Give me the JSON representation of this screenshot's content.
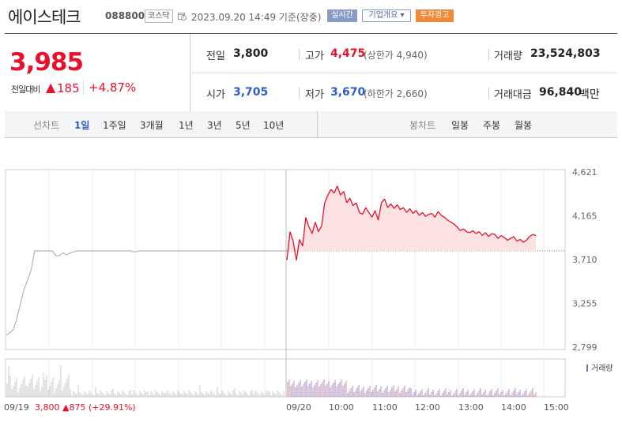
{
  "header": {
    "name": "에이스테크",
    "code": "088800",
    "market": "코스닥",
    "datetime": "2023.09.20 14:49 기준(장중)",
    "realtime_label": "실시간",
    "company_label": "기업개요 ▾",
    "warning_label": "투자경고"
  },
  "price": {
    "current": "3,985",
    "change_label": "전일대비",
    "change_arrow": "▲",
    "change_value": "185",
    "change_pct": "+4.87%"
  },
  "stats": {
    "prev_label": "전일",
    "prev_value": "3,800",
    "high_label": "고가",
    "high_value": "4,475",
    "upper_label": "(상한가 4,940)",
    "volume_label": "거래량",
    "volume_value": "23,524,803",
    "open_label": "시가",
    "open_value": "3,705",
    "low_label": "저가",
    "low_value": "3,670",
    "lower_label": "(하한가 2,660)",
    "amount_label": "거래대금",
    "amount_value": "96,840",
    "amount_unit": "백만"
  },
  "period": {
    "line_label": "선차트",
    "line_items": [
      "1일",
      "1주일",
      "3개월",
      "1년",
      "3년",
      "5년",
      "10년"
    ],
    "active": "1일",
    "candle_label": "봉차트",
    "candle_items": [
      "일봉",
      "주봉",
      "월봉"
    ]
  },
  "chart_data": {
    "type": "line",
    "y_ticks": [
      "4,621",
      "4,165",
      "3,710",
      "3,255",
      "2,799"
    ],
    "ylim": [
      2799,
      4621
    ],
    "reference_price": 3800,
    "x_ticks": [
      "09/19",
      "09/20",
      "10:00",
      "11:00",
      "12:00",
      "13:00",
      "14:00",
      "15:00"
    ],
    "prev_day_note": "3,800 ▲875 (+29.91%)",
    "volume_legend": "거래량",
    "series": [
      {
        "x": [
          0,
          0.5,
          1,
          1.5,
          2,
          2.5,
          3,
          3.5,
          4,
          4.5,
          5,
          5.5,
          6,
          6.5,
          7,
          7.5,
          8,
          8.5,
          9,
          9.5,
          10,
          10.5,
          11,
          11.5,
          12,
          12.5,
          13,
          13.5,
          14,
          14.5,
          15,
          15.5,
          16,
          16.5,
          17,
          17.5,
          18,
          18.5,
          19,
          19.5,
          20,
          20.5,
          21,
          21.5,
          22,
          22.5,
          23,
          23.5,
          24,
          24.5,
          25,
          25.5,
          26,
          26.5,
          27,
          27.5,
          28,
          28.5,
          29,
          29.5,
          30,
          30.5,
          31,
          31.5,
          32,
          32.5,
          33,
          33.5,
          34,
          34.5,
          35,
          35.5,
          36,
          36.5,
          37,
          37.5,
          38,
          38.5,
          39,
          39.5
        ],
        "y": [
          2925,
          2950,
          2980,
          3100,
          3250,
          3400,
          3500,
          3600,
          3800,
          3800,
          3800,
          3800,
          3800,
          3800,
          3750,
          3750,
          3780,
          3760,
          3780,
          3790,
          3800,
          3800,
          3800,
          3800,
          3800,
          3800,
          3800,
          3800,
          3800,
          3800,
          3800,
          3800,
          3800,
          3800,
          3800,
          3800,
          3790,
          3795,
          3800,
          3800,
          3800,
          3800,
          3800,
          3800,
          3800,
          3800,
          3800,
          3800,
          3800,
          3800,
          3800,
          3800,
          3800,
          3800,
          3800,
          3800,
          3800,
          3800,
          3800,
          3800,
          3800,
          3800,
          3800,
          3800,
          3800,
          3800,
          3800,
          3800,
          3800,
          3800,
          3800,
          3800,
          3800,
          3800,
          3800,
          3800,
          3800,
          3800,
          3800,
          3800
        ],
        "name": "09/19"
      },
      {
        "x": [
          0,
          1,
          2,
          3,
          4,
          5,
          6,
          7,
          8,
          9,
          10,
          11,
          12,
          13,
          14,
          15,
          16,
          17,
          18,
          19,
          20,
          21,
          22,
          23,
          24,
          25,
          26,
          27,
          28,
          29,
          30,
          31,
          32,
          33,
          34,
          35,
          36,
          37,
          38,
          39,
          40,
          41,
          42,
          43,
          44,
          45,
          46,
          47,
          48,
          49,
          50,
          51,
          52,
          53,
          54,
          55,
          56,
          57,
          58,
          59,
          60,
          61,
          62,
          63,
          64,
          65,
          66,
          67,
          68,
          69,
          70,
          71,
          72,
          73,
          74,
          75,
          76,
          77,
          78,
          79
        ],
        "y": [
          3705,
          4000,
          3900,
          3700,
          3920,
          3850,
          4150,
          4050,
          3980,
          4100,
          4000,
          4060,
          4300,
          4380,
          4440,
          4400,
          4475,
          4380,
          4420,
          4300,
          4350,
          4270,
          4300,
          4200,
          4180,
          4250,
          4200,
          4150,
          4220,
          4120,
          4300,
          4340,
          4250,
          4290,
          4240,
          4280,
          4230,
          4250,
          4200,
          4240,
          4190,
          4220,
          4170,
          4200,
          4160,
          4180,
          4190,
          4150,
          4210,
          4170,
          4150,
          4120,
          4100,
          4080,
          4050,
          4010,
          4030,
          4000,
          3990,
          4010,
          3980,
          4000,
          3960,
          3990,
          3950,
          3980,
          3970,
          3930,
          3960,
          3940,
          3910,
          3930,
          3950,
          3900,
          3920,
          3890,
          3910,
          3950,
          3970,
          3960
        ],
        "name": "09/20"
      }
    ]
  }
}
